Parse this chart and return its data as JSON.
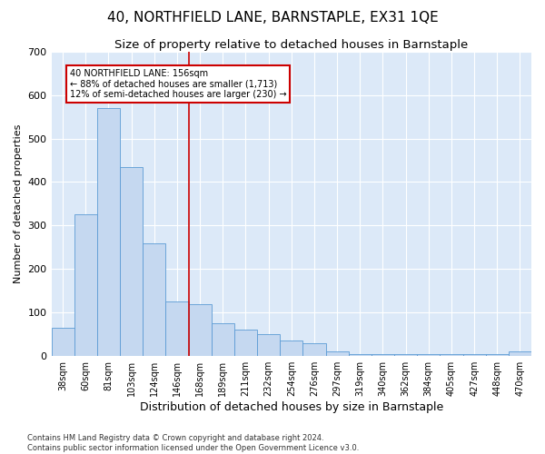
{
  "title": "40, NORTHFIELD LANE, BARNSTAPLE, EX31 1QE",
  "subtitle": "Size of property relative to detached houses in Barnstaple",
  "xlabel": "Distribution of detached houses by size in Barnstaple",
  "ylabel": "Number of detached properties",
  "categories": [
    "38sqm",
    "60sqm",
    "81sqm",
    "103sqm",
    "124sqm",
    "146sqm",
    "168sqm",
    "189sqm",
    "211sqm",
    "232sqm",
    "254sqm",
    "276sqm",
    "297sqm",
    "319sqm",
    "340sqm",
    "362sqm",
    "384sqm",
    "405sqm",
    "427sqm",
    "448sqm",
    "470sqm"
  ],
  "values": [
    65,
    325,
    570,
    435,
    260,
    125,
    120,
    75,
    60,
    50,
    35,
    30,
    10,
    5,
    5,
    5,
    5,
    5,
    5,
    5,
    10
  ],
  "bar_color": "#c5d8f0",
  "bar_edgecolor": "#5b9bd5",
  "property_line_x": 5.5,
  "property_line_color": "#cc0000",
  "annotation_text": "40 NORTHFIELD LANE: 156sqm\n← 88% of detached houses are smaller (1,713)\n12% of semi-detached houses are larger (230) →",
  "annotation_box_color": "#cc0000",
  "background_color": "#dce9f8",
  "footer_text": "Contains HM Land Registry data © Crown copyright and database right 2024.\nContains public sector information licensed under the Open Government Licence v3.0.",
  "ylim": [
    0,
    700
  ],
  "yticks": [
    0,
    100,
    200,
    300,
    400,
    500,
    600,
    700
  ],
  "title_fontsize": 11,
  "subtitle_fontsize": 9.5,
  "xlabel_fontsize": 9,
  "ylabel_fontsize": 8
}
